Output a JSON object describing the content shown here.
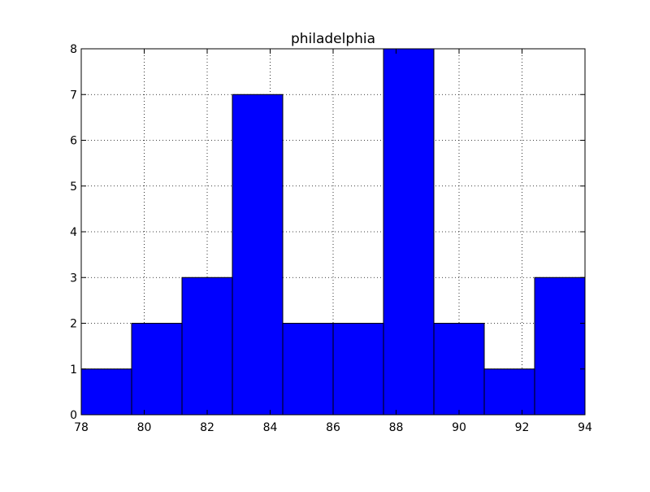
{
  "chart_data": {
    "type": "bar",
    "subtype": "histogram",
    "title": "philadelphia",
    "xlabel": "",
    "ylabel": "",
    "xlim": [
      78,
      94
    ],
    "ylim": [
      0,
      8
    ],
    "xticks": [
      "78",
      "80",
      "82",
      "84",
      "86",
      "88",
      "90",
      "92",
      "94"
    ],
    "yticks": [
      "0",
      "1",
      "2",
      "3",
      "4",
      "5",
      "6",
      "7",
      "8"
    ],
    "bin_edges": [
      78.0,
      79.6,
      81.2,
      82.8,
      84.4,
      86.0,
      87.6,
      89.2,
      90.8,
      92.4,
      94.0
    ],
    "values": [
      1,
      2,
      3,
      7,
      2,
      2,
      8,
      2,
      1,
      3
    ],
    "grid": true,
    "bar_color": "#0000ff",
    "edge_color": "#000000"
  }
}
